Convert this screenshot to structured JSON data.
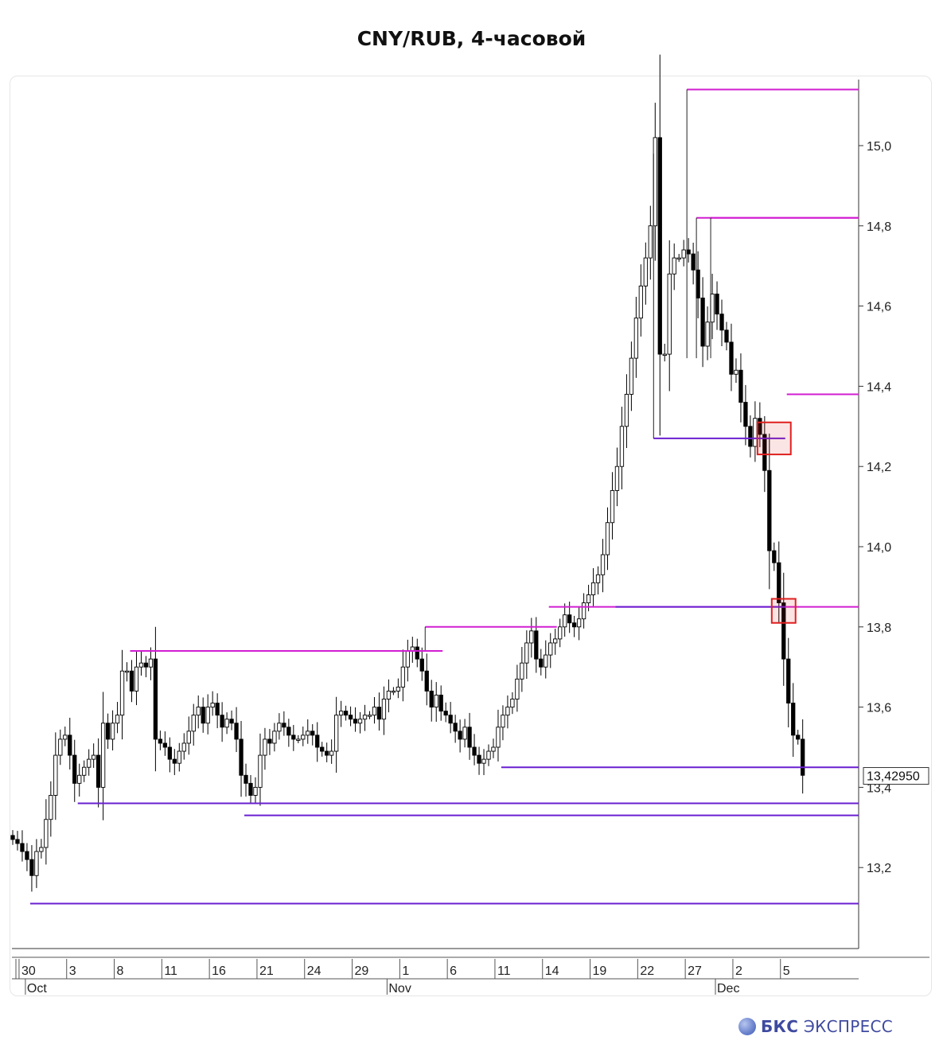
{
  "title": "CNY/RUB, 4-часовой",
  "brand": {
    "bold": "БКС",
    "rest": "ЭКСПРЕСС"
  },
  "colors": {
    "bull": "#ffffff",
    "bear": "#000000",
    "resistance": "#d21ed2",
    "support": "#6a1fd0",
    "box": "#e02020"
  },
  "chart_data": {
    "type": "candlestick",
    "timeframe": "4h",
    "y_ticks": [
      13.2,
      13.4,
      13.6,
      13.8,
      14.0,
      14.2,
      14.4,
      14.6,
      14.8,
      15.0
    ],
    "y_tick_labels": [
      "13,2",
      "13,4",
      "13,6",
      "13,8",
      "14,0",
      "14,2",
      "14,4",
      "14,6",
      "14,8",
      "15,0"
    ],
    "ylim": [
      13.07,
      15.24
    ],
    "x_ticks": [
      {
        "bar": 3,
        "label": "30"
      },
      {
        "bar": 13,
        "label": "3"
      },
      {
        "bar": 23,
        "label": "8"
      },
      {
        "bar": 33,
        "label": "11"
      },
      {
        "bar": 43,
        "label": "16"
      },
      {
        "bar": 53,
        "label": "21"
      },
      {
        "bar": 63,
        "label": "24"
      },
      {
        "bar": 73,
        "label": "29"
      },
      {
        "bar": 83,
        "label": "1"
      },
      {
        "bar": 93,
        "label": "6"
      },
      {
        "bar": 103,
        "label": "11"
      },
      {
        "bar": 113,
        "label": "14"
      },
      {
        "bar": 123,
        "label": "19"
      },
      {
        "bar": 133,
        "label": "22"
      },
      {
        "bar": 143,
        "label": "27"
      },
      {
        "bar": 153,
        "label": "2"
      },
      {
        "bar": 163,
        "label": "5"
      }
    ],
    "months": [
      {
        "bar": 5,
        "label": "Oct"
      },
      {
        "bar": 81,
        "label": "Nov"
      },
      {
        "bar": 150,
        "label": "Dec"
      }
    ],
    "last_price_label": "13,42950",
    "last_price": 13.4295,
    "close": [
      13.27,
      13.26,
      13.24,
      13.22,
      13.18,
      13.24,
      13.25,
      13.32,
      13.38,
      13.48,
      13.52,
      13.53,
      13.48,
      13.41,
      13.43,
      13.45,
      13.47,
      13.48,
      13.4,
      13.56,
      13.52,
      13.56,
      13.58,
      13.69,
      13.69,
      13.64,
      13.7,
      13.71,
      13.7,
      13.72,
      13.52,
      13.51,
      13.5,
      13.47,
      13.46,
      13.49,
      13.51,
      13.54,
      13.58,
      13.6,
      13.56,
      13.6,
      13.61,
      13.58,
      13.55,
      13.57,
      13.56,
      13.52,
      13.43,
      13.41,
      13.38,
      13.4,
      13.48,
      13.52,
      13.51,
      13.54,
      13.56,
      13.55,
      13.53,
      13.52,
      13.52,
      13.53,
      13.54,
      13.53,
      13.5,
      13.49,
      13.48,
      13.49,
      13.58,
      13.59,
      13.58,
      13.57,
      13.56,
      13.57,
      13.58,
      13.58,
      13.6,
      13.57,
      13.62,
      13.64,
      13.64,
      13.65,
      13.7,
      13.74,
      13.75,
      13.72,
      13.69,
      13.64,
      13.6,
      13.63,
      13.59,
      13.58,
      13.56,
      13.54,
      13.52,
      13.55,
      13.5,
      13.48,
      13.46,
      13.47,
      13.49,
      13.5,
      13.55,
      13.58,
      13.6,
      13.62,
      13.67,
      13.71,
      13.76,
      13.79,
      13.72,
      13.7,
      13.73,
      13.76,
      13.77,
      13.8,
      13.83,
      13.81,
      13.8,
      13.82,
      13.86,
      13.88,
      13.91,
      13.93,
      13.98,
      14.06,
      14.14,
      14.2,
      14.3,
      14.38,
      14.47,
      14.57,
      14.65,
      14.72,
      14.8,
      15.02,
      14.48,
      14.48,
      14.68,
      14.72,
      14.72,
      14.74,
      14.73,
      14.69,
      14.62,
      14.5,
      14.56,
      14.63,
      14.58,
      14.54,
      14.51,
      14.43,
      14.44,
      14.36,
      14.3,
      14.25,
      14.32,
      14.28,
      14.19,
      13.99,
      13.96,
      13.86,
      13.72,
      13.61,
      13.53,
      13.52,
      13.43
    ],
    "resistance_levels": [
      {
        "price": 15.14,
        "from_bar": 142,
        "pivot": "vertical"
      },
      {
        "price": 14.82,
        "from_bar": 144,
        "pivot": "vertical"
      },
      {
        "price": 14.82,
        "from_bar": 147,
        "pivot": "vertical"
      },
      {
        "price": 14.38,
        "from_bar": 163
      },
      {
        "price": 13.85,
        "from_bar": 113
      },
      {
        "price": 13.8,
        "from_bar": 87,
        "to_bar": 114,
        "pivot": "vertical"
      },
      {
        "price": 13.74,
        "from_bar": 25,
        "to_bar": 90
      }
    ],
    "support_levels": [
      {
        "price": 14.27,
        "from_bar": 135,
        "to_bar": 162,
        "pivot": "vertical"
      },
      {
        "price": 13.85,
        "from_bar": 127,
        "to_bar": 162
      },
      {
        "price": 13.45,
        "from_bar": 103
      },
      {
        "price": 13.36,
        "from_bar": 14
      },
      {
        "price": 13.33,
        "from_bar": 49
      },
      {
        "price": 13.11,
        "from_bar": 4
      }
    ],
    "highlight_boxes": [
      {
        "bar_from": 157,
        "bar_to": 163,
        "price_high": 14.31,
        "price_low": 14.23
      },
      {
        "bar_from": 160,
        "bar_to": 164,
        "price_high": 13.87,
        "price_low": 13.81
      }
    ]
  }
}
